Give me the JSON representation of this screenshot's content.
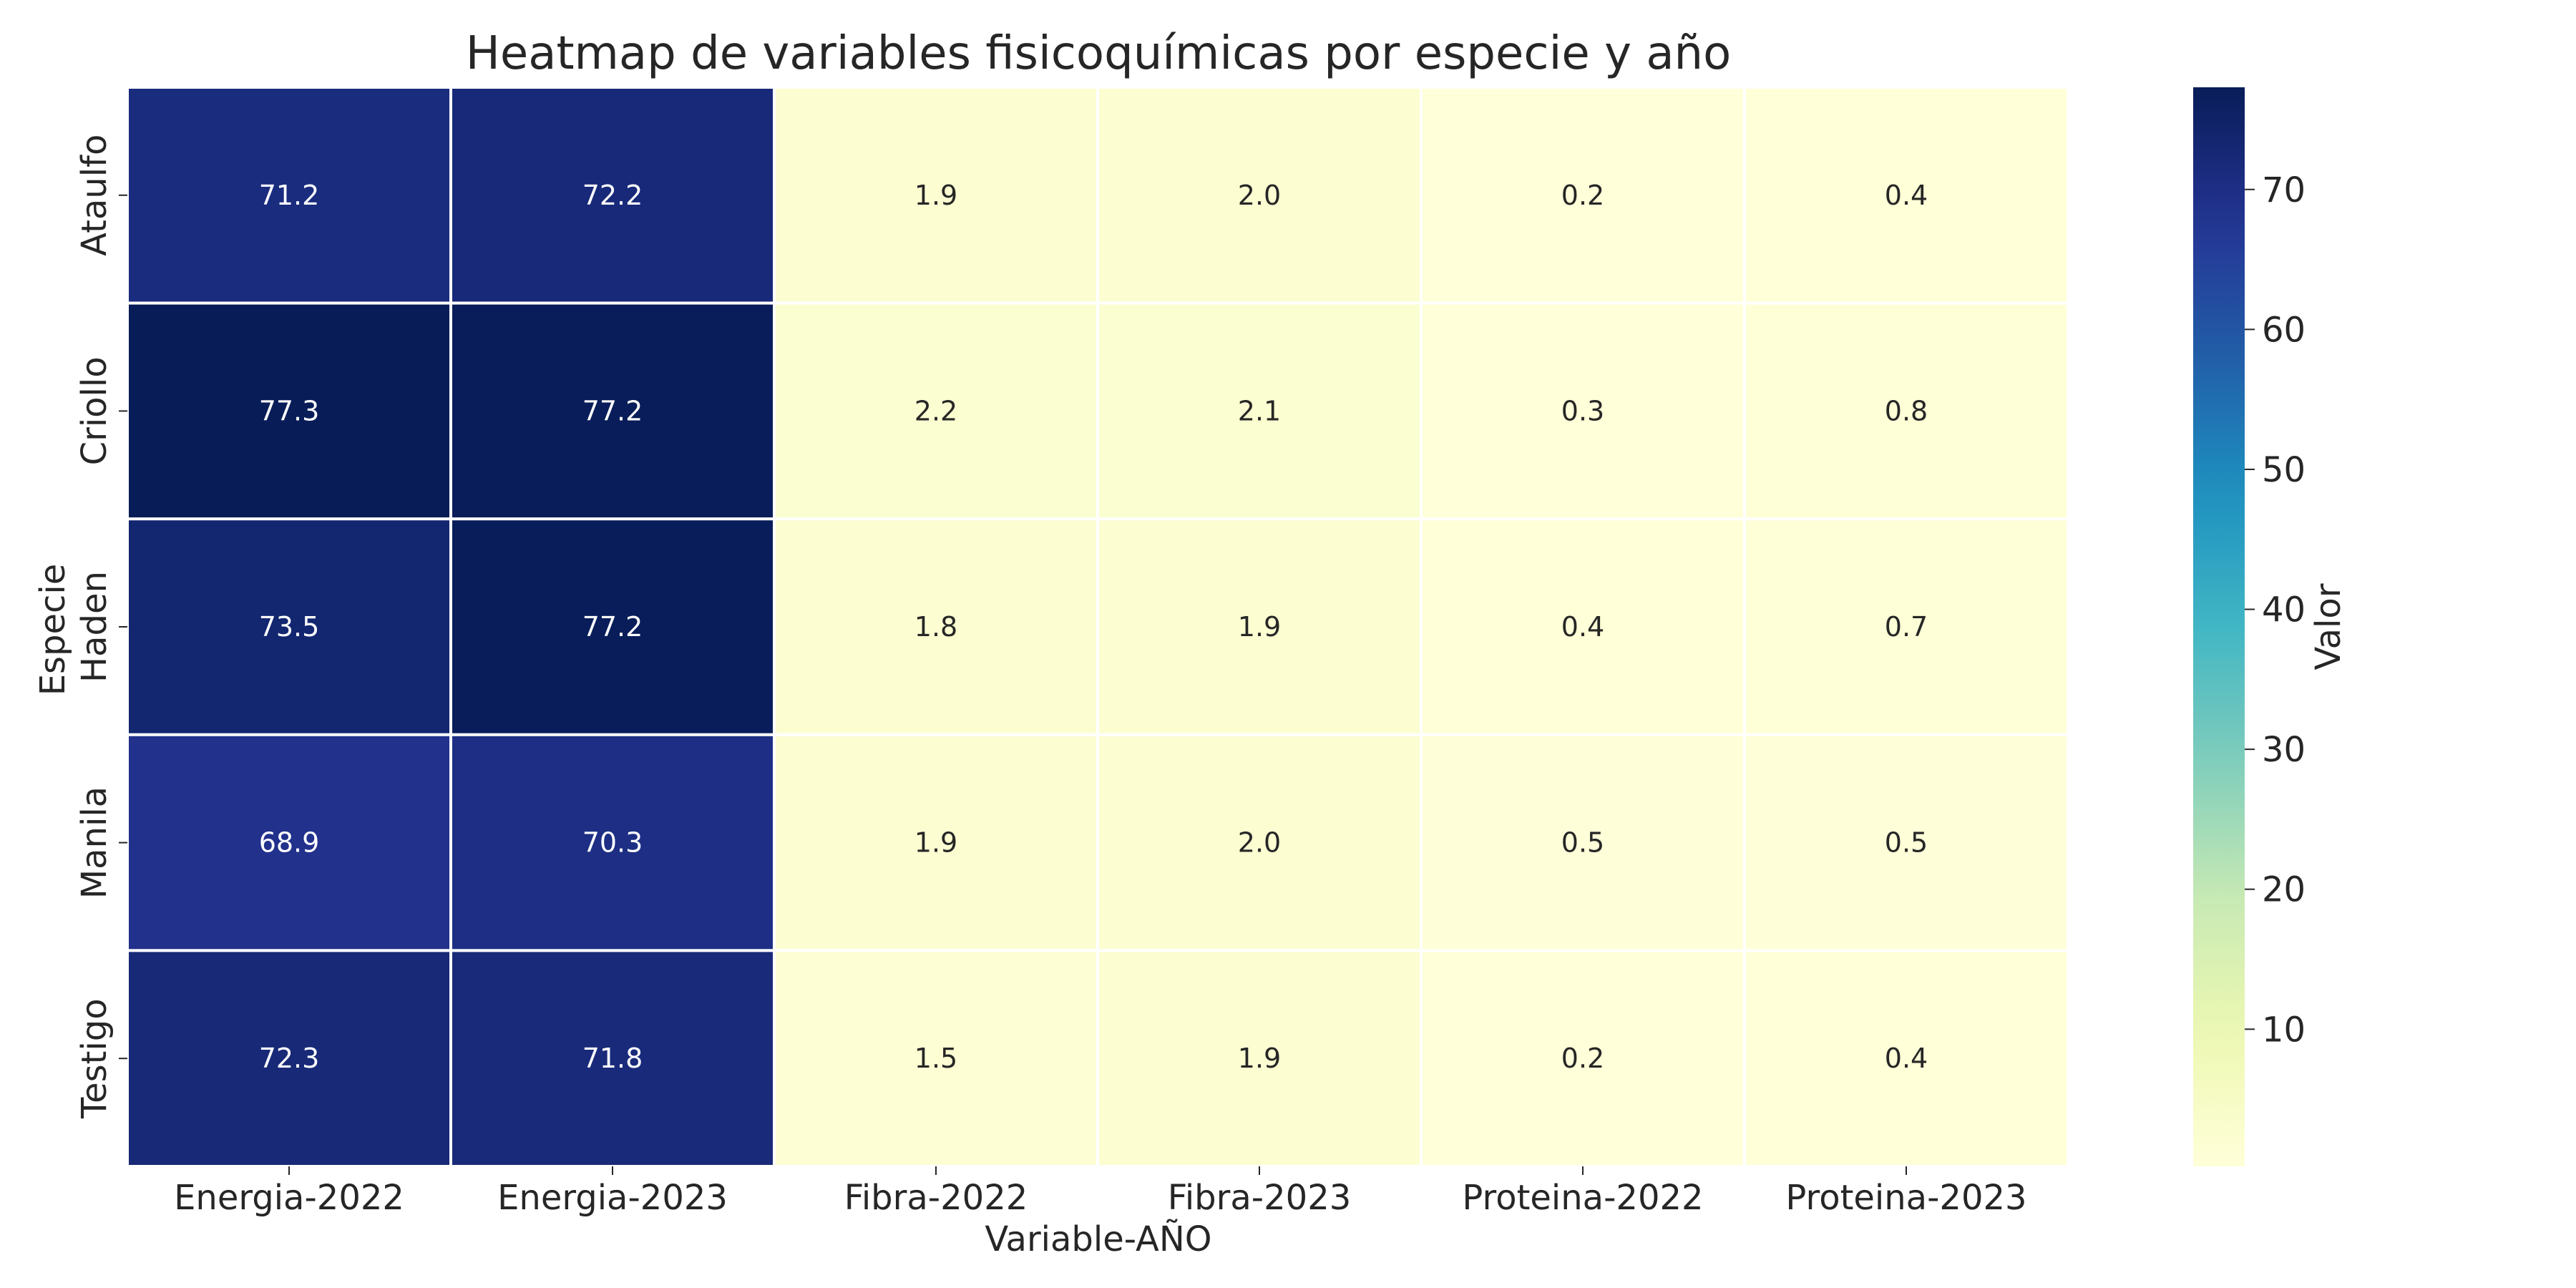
{
  "chart_data": {
    "type": "heatmap",
    "title": "Heatmap de variables fisicoquímicas por especie y año",
    "xlabel": "Variable-AÑO",
    "ylabel": "Especie",
    "colorbar_label": "Valor",
    "x_categories": [
      "Energia-2022",
      "Energia-2023",
      "Fibra-2022",
      "Fibra-2023",
      "Proteina-2022",
      "Proteina-2023"
    ],
    "y_categories": [
      "Ataulfo",
      "Criollo",
      "Haden",
      "Manila",
      "Testigo"
    ],
    "values": [
      [
        71.2,
        72.2,
        1.9,
        2.0,
        0.2,
        0.4
      ],
      [
        77.3,
        77.2,
        2.2,
        2.1,
        0.3,
        0.8
      ],
      [
        73.5,
        77.2,
        1.8,
        1.9,
        0.4,
        0.7
      ],
      [
        68.9,
        70.3,
        1.9,
        2.0,
        0.5,
        0.5
      ],
      [
        72.3,
        71.8,
        1.5,
        1.9,
        0.2,
        0.4
      ]
    ],
    "value_format": "1 decimal",
    "color_range": [
      0.2,
      77.3
    ],
    "colorbar_ticks": [
      10,
      20,
      30,
      40,
      50,
      60,
      70
    ],
    "colormap": "YlGnBu",
    "grid": false,
    "legend": "colorbar-right"
  }
}
